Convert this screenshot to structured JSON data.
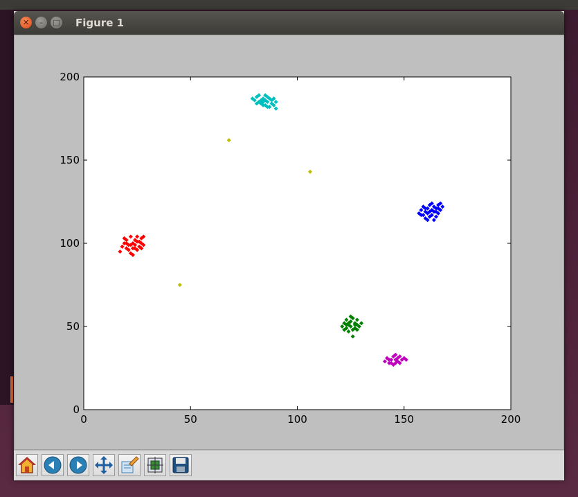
{
  "window": {
    "title": "Figure 1"
  },
  "toolbar": {
    "buttons": [
      {
        "name": "home-icon"
      },
      {
        "name": "back-icon"
      },
      {
        "name": "forward-icon"
      },
      {
        "name": "pan-icon"
      },
      {
        "name": "zoom-icon"
      },
      {
        "name": "subplots-icon"
      },
      {
        "name": "save-icon"
      }
    ]
  },
  "chart_data": {
    "type": "scatter",
    "xlim": [
      0,
      200
    ],
    "ylim": [
      0,
      200
    ],
    "x_ticks": [
      0,
      50,
      100,
      150,
      200
    ],
    "y_ticks": [
      0,
      50,
      100,
      150,
      200
    ],
    "x_tick_labels": [
      "0",
      "50",
      "100",
      "150",
      "200"
    ],
    "y_tick_labels": [
      "0",
      "50",
      "100",
      "150",
      "200"
    ],
    "grid": false,
    "series": [
      {
        "color": "#ff0000",
        "points": [
          [
            17,
            95
          ],
          [
            18,
            98
          ],
          [
            19,
            100
          ],
          [
            20,
            97
          ],
          [
            20,
            102
          ],
          [
            21,
            99
          ],
          [
            22,
            104
          ],
          [
            22,
            94
          ],
          [
            23,
            100
          ],
          [
            23,
            97
          ],
          [
            24,
            102
          ],
          [
            24,
            99
          ],
          [
            25,
            104
          ],
          [
            25,
            96
          ],
          [
            26,
            101
          ],
          [
            26,
            98
          ],
          [
            27,
            103
          ],
          [
            27,
            100
          ],
          [
            28,
            99
          ],
          [
            21,
            96
          ],
          [
            19,
            103
          ],
          [
            23,
            93
          ],
          [
            28,
            104
          ],
          [
            25,
            101
          ],
          [
            22,
            99
          ],
          [
            24,
            97
          ],
          [
            27,
            97
          ],
          [
            20,
            100
          ]
        ]
      },
      {
        "color": "#00bfbf",
        "points": [
          [
            79,
            187
          ],
          [
            80,
            186
          ],
          [
            81,
            188
          ],
          [
            82,
            185
          ],
          [
            82,
            189
          ],
          [
            83,
            184
          ],
          [
            84,
            187
          ],
          [
            84,
            183
          ],
          [
            85,
            186
          ],
          [
            85,
            189
          ],
          [
            86,
            185
          ],
          [
            86,
            182
          ],
          [
            87,
            187
          ],
          [
            88,
            184
          ],
          [
            88,
            186
          ],
          [
            89,
            183
          ],
          [
            90,
            185
          ],
          [
            90,
            181
          ],
          [
            83,
            186
          ],
          [
            86,
            188
          ],
          [
            81,
            184
          ],
          [
            87,
            182
          ],
          [
            84,
            185
          ],
          [
            89,
            187
          ],
          [
            85,
            183
          ]
        ]
      },
      {
        "color": "#0000ff",
        "points": [
          [
            157,
            118
          ],
          [
            158,
            120
          ],
          [
            159,
            117
          ],
          [
            159,
            122
          ],
          [
            160,
            119
          ],
          [
            160,
            115
          ],
          [
            161,
            121
          ],
          [
            161,
            118
          ],
          [
            162,
            123
          ],
          [
            162,
            116
          ],
          [
            163,
            120
          ],
          [
            163,
            117
          ],
          [
            164,
            122
          ],
          [
            164,
            114
          ],
          [
            165,
            119
          ],
          [
            165,
            121
          ],
          [
            166,
            118
          ],
          [
            166,
            123
          ],
          [
            167,
            120
          ],
          [
            167,
            124
          ],
          [
            168,
            122
          ],
          [
            161,
            114
          ],
          [
            163,
            124
          ],
          [
            160,
            121
          ],
          [
            165,
            116
          ],
          [
            162,
            119
          ],
          [
            164,
            119
          ],
          [
            158,
            117
          ],
          [
            166,
            121
          ]
        ]
      },
      {
        "color": "#008000",
        "points": [
          [
            121,
            50
          ],
          [
            122,
            52
          ],
          [
            123,
            49
          ],
          [
            123,
            54
          ],
          [
            124,
            51
          ],
          [
            124,
            47
          ],
          [
            125,
            53
          ],
          [
            125,
            50
          ],
          [
            126,
            55
          ],
          [
            126,
            48
          ],
          [
            127,
            52
          ],
          [
            127,
            49
          ],
          [
            128,
            54
          ],
          [
            128,
            51
          ],
          [
            129,
            50
          ],
          [
            130,
            52
          ],
          [
            126,
            44
          ],
          [
            122,
            48
          ],
          [
            125,
            56
          ],
          [
            124,
            52
          ],
          [
            127,
            51
          ],
          [
            123,
            51
          ],
          [
            128,
            48
          ]
        ]
      },
      {
        "color": "#bf00bf",
        "points": [
          [
            141,
            29
          ],
          [
            142,
            31
          ],
          [
            143,
            28
          ],
          [
            144,
            30
          ],
          [
            145,
            32
          ],
          [
            145,
            27
          ],
          [
            146,
            30
          ],
          [
            146,
            33
          ],
          [
            147,
            29
          ],
          [
            147,
            31
          ],
          [
            148,
            32
          ],
          [
            148,
            28
          ],
          [
            149,
            30
          ],
          [
            150,
            31
          ],
          [
            151,
            30
          ],
          [
            144,
            28
          ],
          [
            146,
            28
          ],
          [
            143,
            30
          ]
        ]
      },
      {
        "color": "#bfbf00",
        "points": [
          [
            45,
            75
          ],
          [
            68,
            162
          ],
          [
            106,
            143
          ]
        ]
      }
    ]
  }
}
